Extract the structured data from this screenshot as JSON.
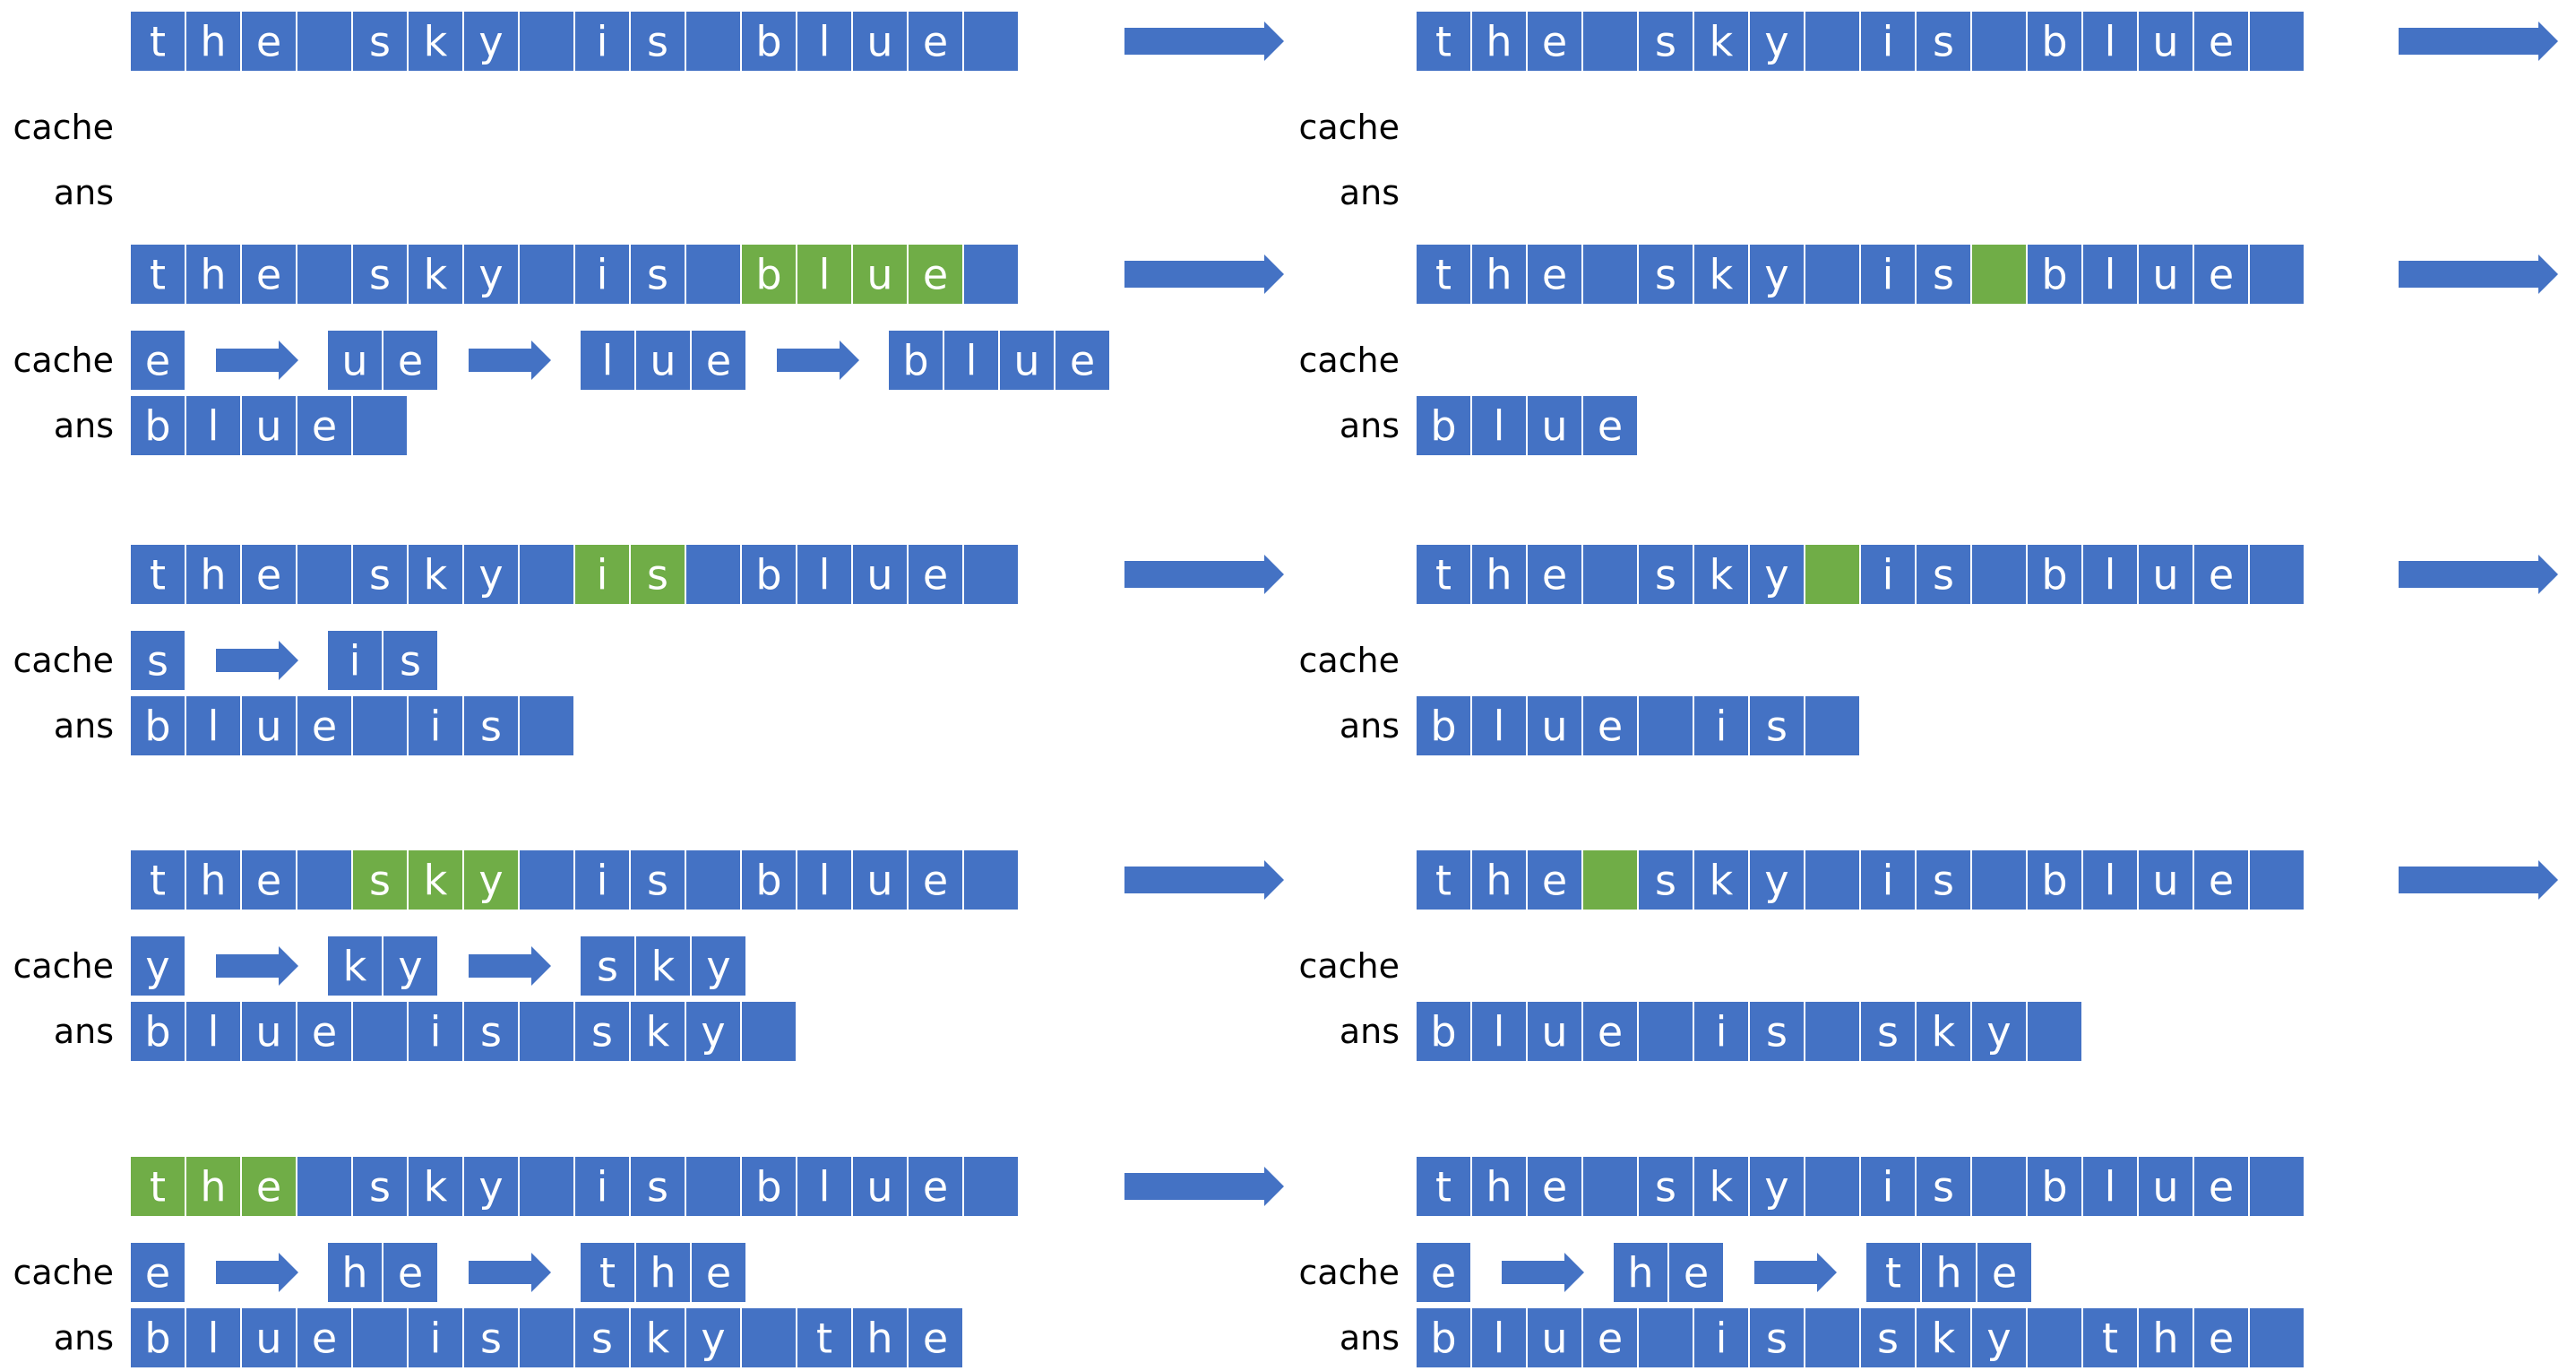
{
  "labels": {
    "cache": "cache",
    "ans": "ans"
  },
  "colors": {
    "cell": "#4472C4",
    "highlight": "#70AD47",
    "border": "#ffffff",
    "arrow": "#4472C4",
    "label": "#000000",
    "cell_text": "#ffffff"
  },
  "source": [
    "t",
    "h",
    "e",
    " ",
    "s",
    "k",
    "y",
    " ",
    "i",
    "s",
    " ",
    "b",
    "l",
    "u",
    "e",
    " "
  ],
  "panels": [
    {
      "name": "step-1-scan",
      "highlight_from": 16,
      "highlight_to": 16,
      "cache": [],
      "ans": [],
      "arrow_after": true
    },
    {
      "name": "step-2-scan",
      "highlight_from": 16,
      "highlight_to": 16,
      "cache": [],
      "ans": [],
      "arrow_after": true
    },
    {
      "name": "step-3-word-blue",
      "highlight_from": 11,
      "highlight_to": 14,
      "cache": [
        "e",
        "ue",
        "lue",
        "blue"
      ],
      "ans": [
        "b",
        "l",
        "u",
        "e",
        " "
      ],
      "arrow_after": true
    },
    {
      "name": "step-4-space",
      "highlight_from": 10,
      "highlight_to": 10,
      "cache": [],
      "ans": [
        "b",
        "l",
        "u",
        "e"
      ],
      "arrow_after": true
    },
    {
      "name": "step-5-word-is",
      "highlight_from": 8,
      "highlight_to": 9,
      "cache": [
        "s",
        "is"
      ],
      "ans": [
        "b",
        "l",
        "u",
        "e",
        " ",
        "i",
        "s",
        " "
      ],
      "arrow_after": true
    },
    {
      "name": "step-6-space",
      "highlight_from": 7,
      "highlight_to": 7,
      "cache": [],
      "ans": [
        "b",
        "l",
        "u",
        "e",
        " ",
        "i",
        "s",
        " "
      ],
      "arrow_after": true
    },
    {
      "name": "step-7-word-sky",
      "highlight_from": 4,
      "highlight_to": 6,
      "cache": [
        "y",
        "ky",
        "sky"
      ],
      "ans": [
        "b",
        "l",
        "u",
        "e",
        " ",
        "i",
        "s",
        " ",
        "s",
        "k",
        "y",
        " "
      ],
      "arrow_after": true
    },
    {
      "name": "step-8-space",
      "highlight_from": 3,
      "highlight_to": 3,
      "cache": [],
      "ans": [
        "b",
        "l",
        "u",
        "e",
        " ",
        "i",
        "s",
        " ",
        "s",
        "k",
        "y",
        " "
      ],
      "arrow_after": true
    },
    {
      "name": "step-9-word-the",
      "highlight_from": 0,
      "highlight_to": 2,
      "cache": [
        "e",
        "he",
        "the"
      ],
      "ans": [
        "b",
        "l",
        "u",
        "e",
        " ",
        "i",
        "s",
        " ",
        "s",
        "k",
        "y",
        " ",
        "t",
        "h",
        "e"
      ],
      "arrow_after": true
    },
    {
      "name": "step-10-done",
      "highlight_from": -1,
      "highlight_to": -1,
      "cache": [
        "e",
        "he",
        "the"
      ],
      "ans": [
        "b",
        "l",
        "u",
        "e",
        " ",
        "i",
        "s",
        " ",
        "s",
        "k",
        "y",
        " ",
        "t",
        "h",
        "e",
        " "
      ],
      "arrow_after": false
    }
  ]
}
